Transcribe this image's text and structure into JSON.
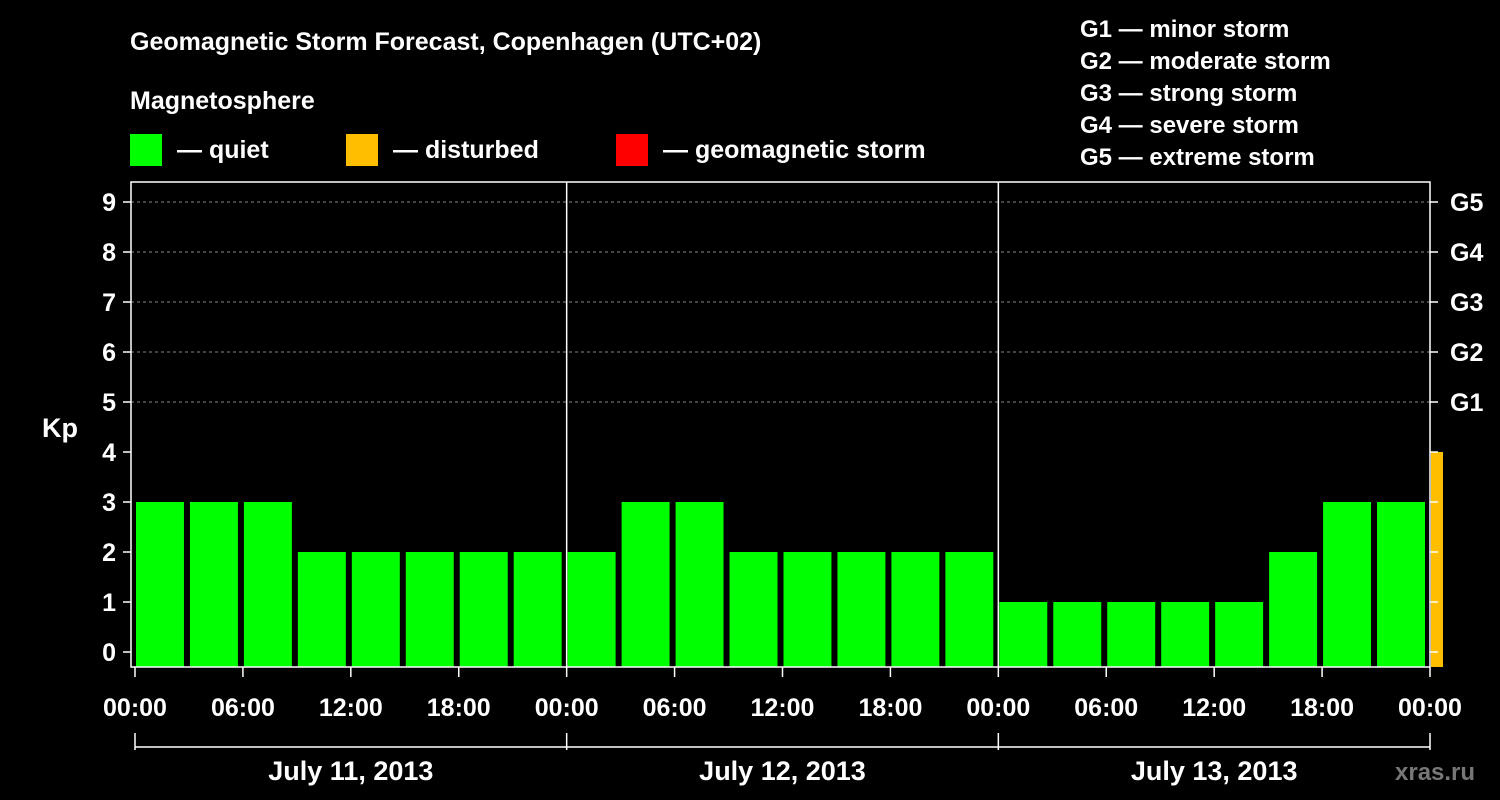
{
  "chart_data": {
    "type": "bar",
    "title": "Geomagnetic Storm Forecast, Copenhagen (UTC+02)",
    "legend": {
      "title": "Magnetosphere",
      "items": [
        {
          "label": "— quiet",
          "color": "#00FF00"
        },
        {
          "label": "— disturbed",
          "color": "#FFBF00"
        },
        {
          "label": "— geomagnetic storm",
          "color": "#FF0000"
        }
      ]
    },
    "storm_scale": [
      "G1 — minor storm",
      "G2 — moderate storm",
      "G3 — strong storm",
      "G4 — severe storm",
      "G5 — extreme storm"
    ],
    "ylabel": "Kp",
    "ylim": [
      0,
      9
    ],
    "yticks": [
      "0",
      "1",
      "2",
      "3",
      "4",
      "5",
      "6",
      "7",
      "8",
      "9"
    ],
    "right_ticks": [
      {
        "kp": 5,
        "label": "G1"
      },
      {
        "kp": 6,
        "label": "G2"
      },
      {
        "kp": 7,
        "label": "G3"
      },
      {
        "kp": 8,
        "label": "G4"
      },
      {
        "kp": 9,
        "label": "G5"
      }
    ],
    "xtick_labels": [
      "00:00",
      "06:00",
      "12:00",
      "18:00",
      "00:00",
      "06:00",
      "12:00",
      "18:00",
      "00:00",
      "06:00",
      "12:00",
      "18:00",
      "00:00"
    ],
    "days": [
      "July 11, 2013",
      "July 12, 2013",
      "July 13, 2013"
    ],
    "grid": true,
    "series": [
      {
        "values": [
          3,
          3,
          3,
          2,
          2,
          2,
          2,
          2,
          2,
          3,
          3,
          2,
          2,
          2,
          2,
          2,
          1,
          1,
          1,
          1,
          1,
          2,
          3,
          3,
          4
        ],
        "colors": [
          "#00FF00",
          "#00FF00",
          "#00FF00",
          "#00FF00",
          "#00FF00",
          "#00FF00",
          "#00FF00",
          "#00FF00",
          "#00FF00",
          "#00FF00",
          "#00FF00",
          "#00FF00",
          "#00FF00",
          "#00FF00",
          "#00FF00",
          "#00FF00",
          "#00FF00",
          "#00FF00",
          "#00FF00",
          "#00FF00",
          "#00FF00",
          "#00FF00",
          "#00FF00",
          "#00FF00",
          "#FFBF00"
        ]
      }
    ]
  },
  "watermark": "xras.ru"
}
